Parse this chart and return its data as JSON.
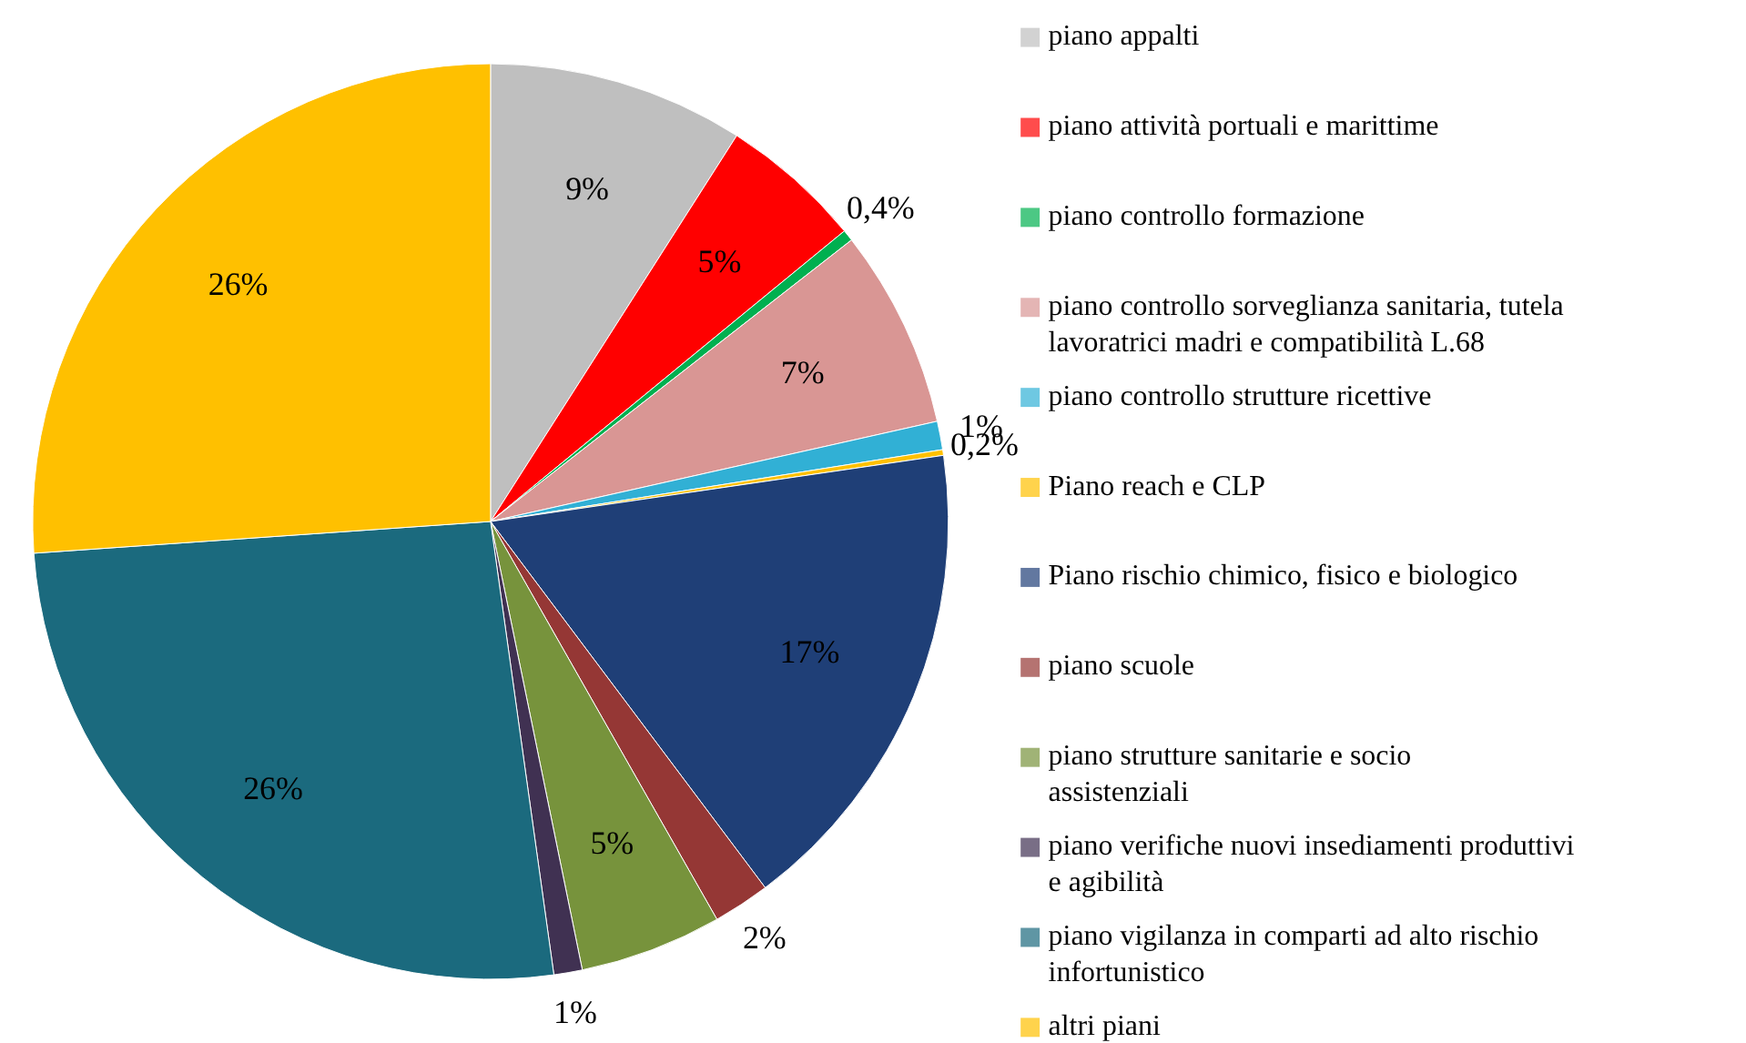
{
  "chart_data": {
    "type": "pie",
    "categories": [
      "piano appalti",
      "piano attività portuali e marittime",
      "piano controllo formazione",
      "piano controllo sorveglianza sanitaria, tutela lavoratrici madri e compatibilità L.68",
      "piano controllo strutture ricettive",
      "Piano reach e CLP",
      "Piano rischio chimico, fisico e biologico",
      "piano scuole",
      "piano strutture sanitarie e socio assistenziali",
      "piano verifiche nuovi insediamenti produttivi e agibilità",
      "piano vigilanza in comparti ad alto rischio infortunistico",
      "altri piani"
    ],
    "values": [
      9,
      5,
      0.4,
      7,
      1,
      0.2,
      17,
      2,
      5,
      1,
      26,
      26
    ],
    "value_labels": [
      "9%",
      "5%",
      "0,4%",
      "7%",
      "1%",
      "0,2%",
      "17%",
      "2%",
      "5%",
      "1%",
      "26%",
      "26%"
    ],
    "colors": [
      "#bfbfbf",
      "#ff0000",
      "#00b050",
      "#d99694",
      "#31b0d5",
      "#ffc000",
      "#1f3f77",
      "#953735",
      "#77933c",
      "#403152",
      "#1b6a7e",
      "#ffc000"
    ],
    "legend": "right"
  }
}
